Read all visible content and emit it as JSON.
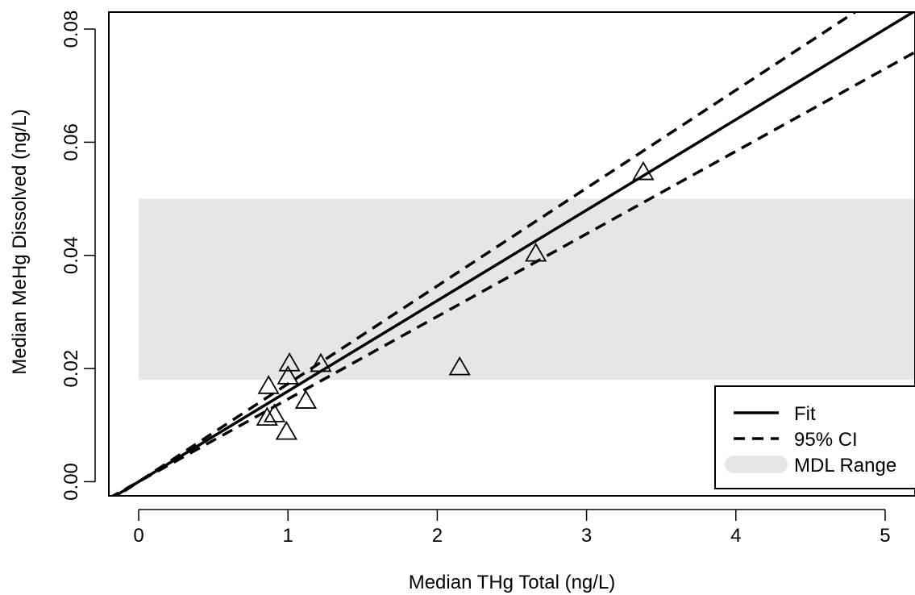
{
  "chart_data": {
    "type": "scatter",
    "xlabel": "Median THg Total (ng/L)",
    "ylabel": "Median MeHg Dissolved (ng/L)",
    "xlim": [
      -0.2,
      5.2
    ],
    "ylim": [
      -0.0025,
      0.083
    ],
    "x_ticks": [
      "0",
      "1",
      "2",
      "3",
      "4",
      "5"
    ],
    "y_ticks": [
      "0.00",
      "0.02",
      "0.04",
      "0.06",
      "0.08"
    ],
    "grid": false,
    "marker": "open-triangle",
    "points": [
      {
        "x": 0.87,
        "y": 0.0168
      },
      {
        "x": 0.86,
        "y": 0.0112
      },
      {
        "x": 0.91,
        "y": 0.0118
      },
      {
        "x": 0.99,
        "y": 0.0087
      },
      {
        "x": 1.0,
        "y": 0.0185
      },
      {
        "x": 1.01,
        "y": 0.0208
      },
      {
        "x": 1.12,
        "y": 0.0142
      },
      {
        "x": 1.22,
        "y": 0.0207
      },
      {
        "x": 2.15,
        "y": 0.0201
      },
      {
        "x": 2.66,
        "y": 0.0402
      },
      {
        "x": 3.38,
        "y": 0.0546
      }
    ],
    "fit": {
      "label": "Fit",
      "slope": 0.016,
      "intercept": 0.0
    },
    "ci_upper": {
      "label": "95% CI",
      "slope": 0.0173,
      "intercept": 0.0
    },
    "ci_lower": {
      "label": "95% CI",
      "slope": 0.0146,
      "intercept": 0.0
    },
    "mdl_range": {
      "label": "MDL Range",
      "x": [
        0.0,
        5.2
      ],
      "y": [
        0.018,
        0.05
      ],
      "color": "#e6e6e6"
    },
    "legend": {
      "placement": "bottom-right",
      "entries": [
        {
          "label": "Fit",
          "style": "solid"
        },
        {
          "label": "95% CI",
          "style": "dashed"
        },
        {
          "label": "MDL Range",
          "style": "fill"
        }
      ]
    }
  }
}
